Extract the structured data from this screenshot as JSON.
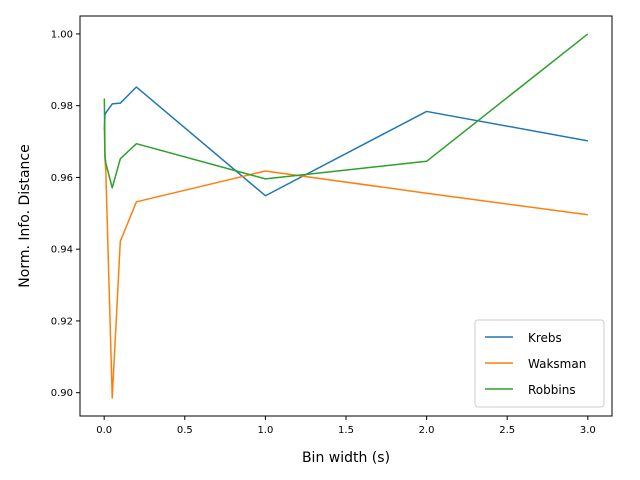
{
  "chart_data": {
    "type": "line",
    "title": "",
    "xlabel": "Bin width (s)",
    "ylabel": "Norm. Info. Distance",
    "xlim": [
      -0.15,
      3.15
    ],
    "ylim": [
      0.8935,
      1.005
    ],
    "xticks": [
      0.0,
      0.5,
      1.0,
      1.5,
      2.0,
      2.5,
      3.0
    ],
    "xtick_labels": [
      "0.0",
      "0.5",
      "1.0",
      "1.5",
      "2.0",
      "2.5",
      "3.0"
    ],
    "yticks": [
      0.9,
      0.92,
      0.94,
      0.96,
      0.98,
      1.0
    ],
    "ytick_labels": [
      "0.90",
      "0.92",
      "0.94",
      "0.96",
      "0.98",
      "1.00"
    ],
    "grid": false,
    "legend_position": "lower-right",
    "series": [
      {
        "name": "Krebs",
        "color": "#1f77b4",
        "x": [
          0.001,
          0.005,
          0.01,
          0.05,
          0.1,
          0.2,
          1.0,
          2.0,
          3.0
        ],
        "y": [
          0.9735,
          0.9775,
          0.978,
          0.9805,
          0.9807,
          0.9852,
          0.9549,
          0.9784,
          0.9702
        ]
      },
      {
        "name": "Waksman",
        "color": "#ff7f0e",
        "x": [
          0.001,
          0.005,
          0.01,
          0.05,
          0.1,
          0.2,
          1.0,
          2.0,
          3.0
        ],
        "y": [
          0.9735,
          0.965,
          0.962,
          0.8985,
          0.9422,
          0.9532,
          0.9618,
          0.9556,
          0.9496
        ]
      },
      {
        "name": "Robbins",
        "color": "#2ca02c",
        "x": [
          0.001,
          0.005,
          0.01,
          0.05,
          0.1,
          0.2,
          1.0,
          2.0,
          3.0
        ],
        "y": [
          0.982,
          0.966,
          0.964,
          0.9571,
          0.9652,
          0.9694,
          0.9596,
          0.9645,
          1.0
        ]
      }
    ]
  }
}
